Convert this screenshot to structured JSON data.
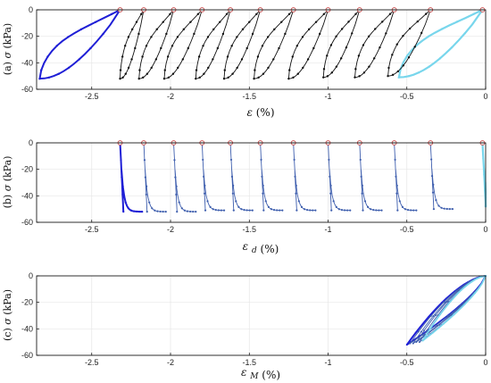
{
  "chart_data": [
    {
      "type": "line",
      "panel": "a",
      "ylabel_prefix": "(a)",
      "ylabel_symbol": "σ",
      "ylabel_unit": "(kPa)",
      "xlabel_symbol": "ε",
      "xlabel_unit": "(%)",
      "xlim": [
        -2.85,
        0
      ],
      "ylim": [
        -60,
        0
      ],
      "xticks": [
        -2.5,
        -2,
        -1.5,
        -1,
        -0.5,
        0
      ],
      "xtick_labels": [
        "-2.5",
        "-2",
        "-1.5",
        "-1",
        "-0.5",
        "0"
      ],
      "yticks": [
        0,
        -20,
        -40,
        -60
      ],
      "ytick_labels": [
        "0",
        "-20",
        "-40",
        "-60"
      ],
      "grid": true,
      "first_cycle_color": "#1f1fd6",
      "cycle_color": "#111111",
      "last_cycle_color": "#78d6ec",
      "loops": [
        {
          "start": -0.02,
          "end": -0.55,
          "peak": -51
        },
        {
          "start": -0.35,
          "end": -0.62,
          "peak": -50
        },
        {
          "start": -0.58,
          "end": -0.83,
          "peak": -51
        },
        {
          "start": -0.8,
          "end": -1.03,
          "peak": -51
        },
        {
          "start": -1.0,
          "end": -1.25,
          "peak": -52
        },
        {
          "start": -1.22,
          "end": -1.47,
          "peak": -52
        },
        {
          "start": -1.43,
          "end": -1.66,
          "peak": -52
        },
        {
          "start": -1.62,
          "end": -1.84,
          "peak": -52
        },
        {
          "start": -1.8,
          "end": -2.04,
          "peak": -52
        },
        {
          "start": -1.98,
          "end": -2.2,
          "peak": -52
        },
        {
          "start": -2.17,
          "end": -2.32,
          "peak": -52
        },
        {
          "start": -2.32,
          "end": -2.83,
          "peak": -52
        }
      ],
      "peak_markers_x": [
        -0.02,
        -0.35,
        -0.58,
        -0.8,
        -1.0,
        -1.22,
        -1.43,
        -1.62,
        -1.8,
        -1.98,
        -2.17,
        -2.32
      ]
    },
    {
      "type": "line",
      "panel": "b",
      "ylabel_prefix": "(b)",
      "ylabel_symbol": "σ",
      "ylabel_unit": "(kPa)",
      "xlabel_symbol": "ε",
      "xlabel_subscript": "d",
      "xlabel_unit": "(%)",
      "xlim": [
        -2.85,
        0
      ],
      "ylim": [
        -60,
        0
      ],
      "xticks": [
        -2.5,
        -2,
        -1.5,
        -1,
        -0.5,
        0
      ],
      "xtick_labels": [
        "-2.5",
        "-2",
        "-1.5",
        "-1",
        "-0.5",
        "0"
      ],
      "yticks": [
        0,
        -20,
        -40,
        -60
      ],
      "ytick_labels": [
        "0",
        "-20",
        "-40",
        "-60"
      ],
      "grid": true,
      "first_cycle_color": "#1f1fd6",
      "cycle_color": "#3f5fae",
      "last_cycle_color": "#78d6ec",
      "spikes": [
        {
          "x": -2.32,
          "peak": -52
        },
        {
          "x": -2.17,
          "peak": -52
        },
        {
          "x": -1.98,
          "peak": -52
        },
        {
          "x": -1.8,
          "peak": -51
        },
        {
          "x": -1.62,
          "peak": -51
        },
        {
          "x": -1.43,
          "peak": -51
        },
        {
          "x": -1.22,
          "peak": -51
        },
        {
          "x": -1.0,
          "peak": -51
        },
        {
          "x": -0.8,
          "peak": -51
        },
        {
          "x": -0.58,
          "peak": -51
        },
        {
          "x": -0.35,
          "peak": -50
        },
        {
          "x": -0.02,
          "peak": -48
        }
      ]
    },
    {
      "type": "line",
      "panel": "c",
      "ylabel_prefix": "(c)",
      "ylabel_symbol": "σ",
      "ylabel_unit": "(kPa)",
      "xlabel_symbol": "ε",
      "xlabel_subscript": "M",
      "xlabel_unit": "(%)",
      "xlim": [
        -2.85,
        0
      ],
      "ylim": [
        -60,
        0
      ],
      "xticks": [
        -2.5,
        -2,
        -1.5,
        -1,
        -0.5,
        0
      ],
      "xtick_labels": [
        "-2.5",
        "-2",
        "-1.5",
        "-1",
        "-0.5",
        "0"
      ],
      "yticks": [
        0,
        -20,
        -40,
        -60
      ],
      "ytick_labels": [
        "0",
        "-20",
        "-40",
        "-60"
      ],
      "grid": true,
      "first_cycle_color": "#1f1fd6",
      "cycle_color": "#3f5fae",
      "last_cycle_color": "#78d6ec",
      "loops": [
        {
          "x_min": -0.5,
          "peak": -52
        },
        {
          "x_min": -0.48,
          "peak": -51
        },
        {
          "x_min": -0.46,
          "peak": -51
        },
        {
          "x_min": -0.44,
          "peak": -50
        },
        {
          "x_min": -0.42,
          "peak": -50
        },
        {
          "x_min": -0.4,
          "peak": -49
        }
      ]
    }
  ]
}
